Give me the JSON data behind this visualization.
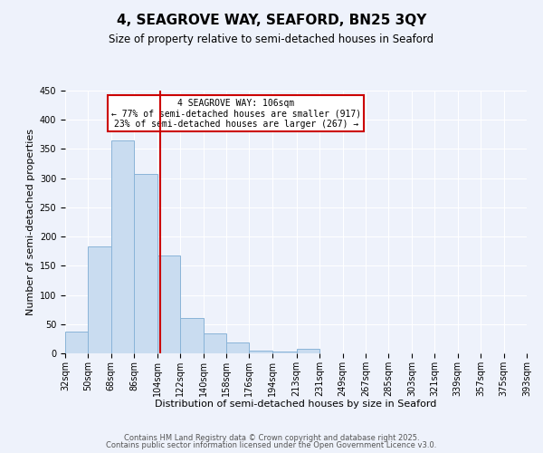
{
  "title": "4, SEAGROVE WAY, SEAFORD, BN25 3QY",
  "subtitle": "Size of property relative to semi-detached houses in Seaford",
  "xlabel": "Distribution of semi-detached houses by size in Seaford",
  "ylabel": "Number of semi-detached properties",
  "bin_edges": [
    32,
    50,
    68,
    86,
    104,
    122,
    140,
    158,
    176,
    194,
    213,
    231,
    249,
    267,
    285,
    303,
    321,
    339,
    357,
    375,
    393
  ],
  "bin_labels": [
    "32sqm",
    "50sqm",
    "68sqm",
    "86sqm",
    "104sqm",
    "122sqm",
    "140sqm",
    "158sqm",
    "176sqm",
    "194sqm",
    "213sqm",
    "231sqm",
    "249sqm",
    "267sqm",
    "285sqm",
    "303sqm",
    "321sqm",
    "339sqm",
    "357sqm",
    "375sqm",
    "393sqm"
  ],
  "counts": [
    38,
    183,
    365,
    308,
    168,
    61,
    34,
    19,
    5,
    3,
    8,
    0,
    0,
    0,
    0,
    0,
    0,
    0,
    0,
    0
  ],
  "bar_color": "#c9dcf0",
  "bar_edge_color": "#8ab4d8",
  "property_value": 106,
  "vline_color": "#cc0000",
  "annotation_text": "4 SEAGROVE WAY: 106sqm\n← 77% of semi-detached houses are smaller (917)\n23% of semi-detached houses are larger (267) →",
  "annotation_box_color": "#ffffff",
  "annotation_box_edge": "#cc0000",
  "ylim": [
    0,
    450
  ],
  "yticks": [
    0,
    50,
    100,
    150,
    200,
    250,
    300,
    350,
    400,
    450
  ],
  "footer1": "Contains HM Land Registry data © Crown copyright and database right 2025.",
  "footer2": "Contains public sector information licensed under the Open Government Licence v3.0.",
  "background_color": "#eef2fb",
  "grid_color": "#ffffff",
  "title_fontsize": 11,
  "subtitle_fontsize": 8.5,
  "axis_label_fontsize": 8,
  "tick_fontsize": 7,
  "annotation_fontsize": 7,
  "footer_fontsize": 6
}
